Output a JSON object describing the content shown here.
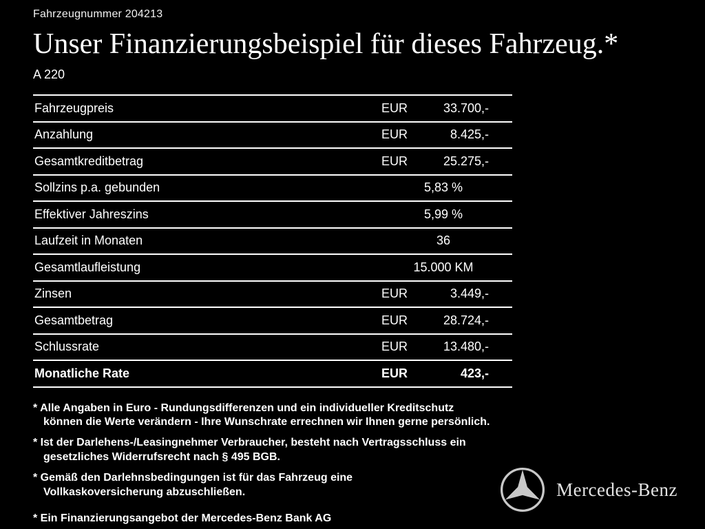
{
  "header": {
    "vehicle_number": "Fahrzeugnummer 204213",
    "title": "Unser Finanzierungsbeispiel für dieses Fahrzeug.*",
    "model": "A 220"
  },
  "table": {
    "rows": [
      {
        "label": "Fahrzeugpreis",
        "currency": "EUR",
        "value": "33.700,-",
        "emphasis": false
      },
      {
        "label": "Anzahlung",
        "currency": "EUR",
        "value": "8.425,-",
        "emphasis": false
      },
      {
        "label": "Gesamtkreditbetrag",
        "currency": "EUR",
        "value": "25.275,-",
        "emphasis": false
      },
      {
        "label": "Sollzins p.a. gebunden",
        "currency": "",
        "value": "5,83 %",
        "emphasis": false
      },
      {
        "label": "Effektiver Jahreszins",
        "currency": "",
        "value": "5,99 %",
        "emphasis": false
      },
      {
        "label": "Laufzeit in Monaten",
        "currency": "",
        "value": "36",
        "emphasis": false
      },
      {
        "label": "Gesamtlaufleistung",
        "currency": "",
        "value": "15.000 KM",
        "emphasis": false
      },
      {
        "label": "Zinsen",
        "currency": "EUR",
        "value": "3.449,-",
        "emphasis": false
      },
      {
        "label": "Gesamtbetrag",
        "currency": "EUR",
        "value": "28.724,-",
        "emphasis": false
      },
      {
        "label": "Schlussrate",
        "currency": "EUR",
        "value": "13.480,-",
        "emphasis": false
      },
      {
        "label": "Monatliche Rate",
        "currency": "EUR",
        "value": "423,-",
        "emphasis": true
      }
    ]
  },
  "footnotes": [
    {
      "text": "* Alle Angaben in Euro - Rundungsdifferenzen und ein individueller Kreditschutz\nkönnen die Werte verändern - Ihre Wunschrate errechnen wir Ihnen gerne persönlich.",
      "bold": false
    },
    {
      "text": "* Ist der Darlehens-/Leasingnehmer Verbraucher, besteht nach Vertragsschluss ein\ngesetzliches Widerrufsrecht nach § 495 BGB.",
      "bold": false
    },
    {
      "text": "* Gemäß den Darlehnsbedingungen ist für das Fahrzeug eine\nVollkaskoversicherung abzuschließen.",
      "bold": false
    },
    {
      "text": "* Ein Finanzierungsangebot der Mercedes-Benz Bank AG",
      "bold": true
    }
  ],
  "footer": {
    "brand": "Mercedes-Benz",
    "logo": "mercedes-star-icon"
  },
  "colors": {
    "background": "#000000",
    "text": "#ffffff",
    "divider": "#ffffff",
    "logo_gray": "#c8c8c8"
  }
}
